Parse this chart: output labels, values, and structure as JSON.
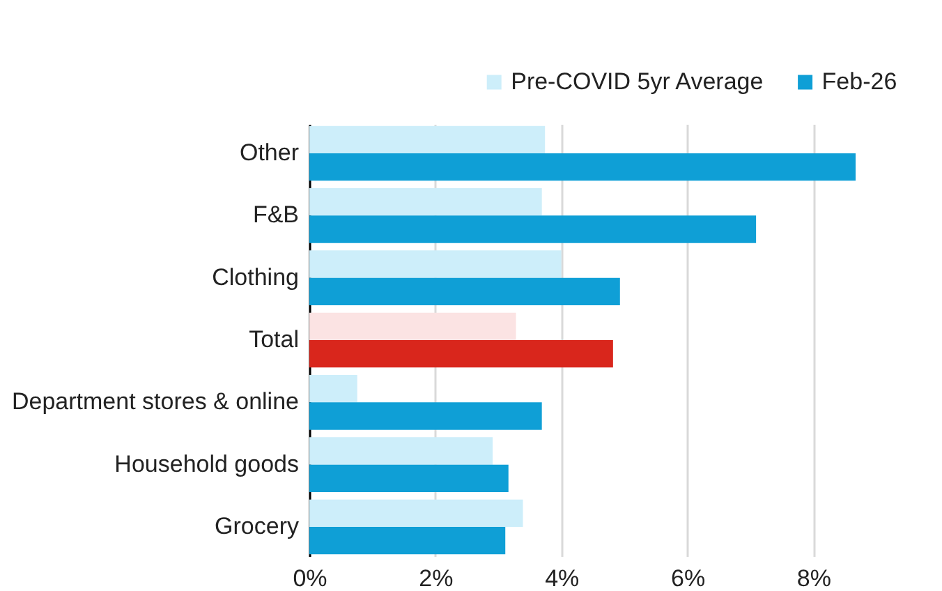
{
  "chart_data": {
    "type": "bar",
    "orientation": "horizontal",
    "categories": [
      "Other",
      "F&B",
      "Clothing",
      "Total",
      "Department stores & online",
      "Household goods",
      "Grocery"
    ],
    "series": [
      {
        "name": "Pre-COVID 5yr Average",
        "color": "#cdeefa",
        "colors": [
          "#cdeefa",
          "#cdeefa",
          "#cdeefa",
          "#fbe3e3",
          "#cdeefa",
          "#cdeefa",
          "#cdeefa"
        ],
        "values": [
          3.74,
          3.69,
          4.0,
          3.28,
          0.76,
          2.91,
          3.39
        ]
      },
      {
        "name": "Feb-26",
        "color": "#0f9fd6",
        "colors": [
          "#0f9fd6",
          "#0f9fd6",
          "#0f9fd6",
          "#d9261c",
          "#0f9fd6",
          "#0f9fd6",
          "#0f9fd6"
        ],
        "values": [
          8.67,
          7.09,
          4.93,
          4.82,
          3.69,
          3.16,
          3.11
        ]
      }
    ],
    "xlim": [
      0,
      8.67
    ],
    "xticks": [
      {
        "value": 0,
        "label": "0%"
      },
      {
        "value": 2,
        "label": "2%"
      },
      {
        "value": 4,
        "label": "4%"
      },
      {
        "value": 6,
        "label": "6%"
      },
      {
        "value": 8,
        "label": "8%"
      }
    ],
    "grid": "x",
    "legend": "top right"
  }
}
